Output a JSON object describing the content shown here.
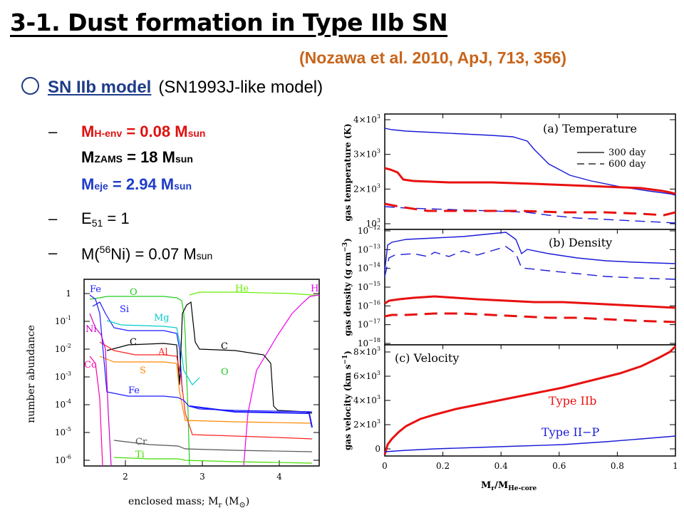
{
  "slide": {
    "title": "3-1. Dust formation in Type IIb SN",
    "reference": "(Nozawa et al. 2010, ApJ, 713, 356)",
    "model_name": "SN IIb model",
    "model_desc": "(SN1993J-like model)"
  },
  "params": {
    "dash": "–",
    "menv": {
      "m": "M",
      "sub": "H-env",
      "eq": " = 0.08 M",
      "unit": "sun"
    },
    "mzams": {
      "m": "M",
      "sub": "ZAMS",
      "eq": " = 18 M",
      "unit": "sun"
    },
    "meje": {
      "m": "M",
      "sub": "eje",
      "eq": " = 2.94 M",
      "unit": "sun"
    },
    "e51": {
      "e": "E",
      "sub": "51",
      "eq": " = 1"
    },
    "mni": {
      "pre": "M(",
      "sup": "56",
      "mid": "Ni) = 0.07 M",
      "unit": "sun"
    }
  },
  "abundance_figure": {
    "ylabel": "number abundance",
    "xlabel": "enclosed mass; M",
    "xlabel_sub": "r",
    "xlabel_unit": " (M",
    "xlabel_unit_sub": "⊙",
    "xlabel_close": ")",
    "yticks": [
      "1",
      "10",
      "10",
      "10",
      "10",
      "10",
      "10"
    ],
    "ytick_exps": [
      "",
      "-1",
      "-2",
      "-3",
      "-4",
      "-5",
      "-6"
    ],
    "xticks": [
      "2",
      "3",
      "4"
    ],
    "labels": {
      "Fe1": "Fe",
      "O1": "O",
      "He": "He",
      "H": "H",
      "Si": "Si",
      "Mg": "Mg",
      "Ni": "Ni",
      "C1": "C",
      "C2": "C",
      "Al": "Al",
      "Co": "Co",
      "S": "S",
      "O2": "O",
      "Fe2": "Fe",
      "Cr": "Cr",
      "Ti": "Ti"
    },
    "colors": {
      "Fe": "#1a1aff",
      "O": "#22cc22",
      "He": "#66ee00",
      "H": "#ee00ee",
      "Si": "#1a1aff",
      "Mg": "#00cccc",
      "Ni": "#cc00cc",
      "C": "#000000",
      "Al": "#ff2222",
      "Co": "#ff00aa",
      "S": "#ff8800",
      "Cr": "#555555",
      "Ti": "#44dd00"
    }
  },
  "profile_figure": {
    "xlabel": "M",
    "xlabel_sub1": "r",
    "xlabel_mid": "/M",
    "xlabel_sub2": "He-core",
    "xticks": [
      "0",
      "0.2",
      "0.4",
      "0.6",
      "0.8",
      "1"
    ],
    "panel_a": {
      "title": "(a) Temperature",
      "ylabel": "gas temperature (K)",
      "yticks": [
        "4×10",
        "3×10",
        "2×10",
        "10"
      ],
      "ytick_exps": [
        "3",
        "3",
        "3",
        "3"
      ],
      "legend": [
        {
          "label": "300 day",
          "style": "solid"
        },
        {
          "label": "600 day",
          "style": "dashed"
        }
      ]
    },
    "panel_b": {
      "title": "(b) Density",
      "ylabel": "gas density (g cm",
      "ylabel_exp": "−3",
      "ylabel_close": ")",
      "yticks": [
        "10",
        "10",
        "10",
        "10",
        "10",
        "10",
        "10"
      ],
      "ytick_exps": [
        "−12",
        "−13",
        "−14",
        "−15",
        "−16",
        "−17",
        "−18"
      ]
    },
    "panel_c": {
      "title": "(c) Velocity",
      "ylabel": "gas velocity (km s",
      "ylabel_exp": "−1",
      "ylabel_close": ")",
      "yticks": [
        "8×10",
        "6×10",
        "4×10",
        "2×10",
        "0"
      ],
      "ytick_exps": [
        "3",
        "3",
        "3",
        "3",
        ""
      ],
      "label_iib": "Type IIb",
      "label_iip": "Type II−P"
    },
    "colors": {
      "iib": "#e81010",
      "iip": "#1a1ad8"
    }
  }
}
